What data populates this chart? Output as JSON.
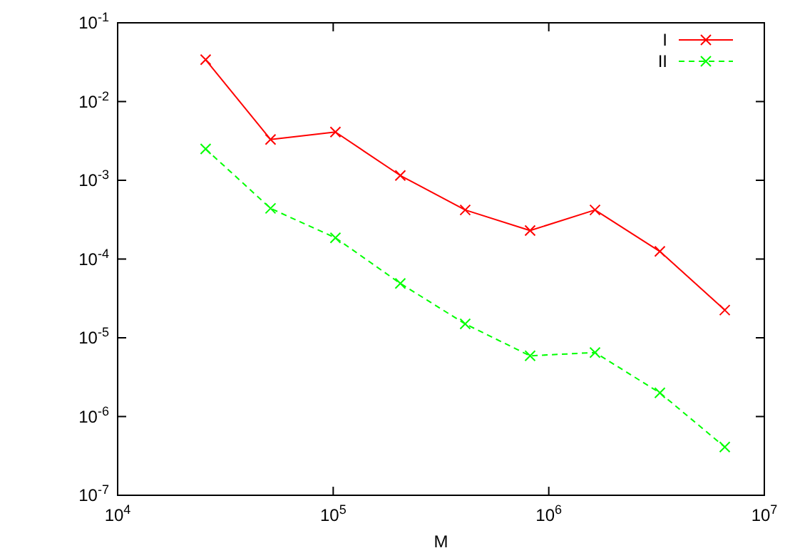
{
  "chart_data": {
    "type": "line",
    "xlabel": "M",
    "log": "xy",
    "grid": false,
    "legend": "top right",
    "x": [
      25600,
      51200,
      102400,
      204800,
      409600,
      819200,
      1638400,
      3276800,
      6553600
    ],
    "xlim": [
      10000,
      10000000
    ],
    "xticks": [
      {
        "value": 10000,
        "label": "10$^{4}$"
      },
      {
        "value": 100000,
        "label": "10$^{5}$"
      },
      {
        "value": 1000000,
        "label": "10$^{6}$"
      },
      {
        "value": 10000000,
        "label": "10$^{7}$"
      }
    ],
    "ylim": [
      1e-07,
      0.1
    ],
    "yticks": [
      {
        "value": 1e-07,
        "label": "10$^{-7}$"
      },
      {
        "value": 1e-06,
        "label": "10$^{-6}$"
      },
      {
        "value": 1e-05,
        "label": "10$^{-5}$"
      },
      {
        "value": 0.0001,
        "label": "10$^{-4}$"
      },
      {
        "value": 0.001,
        "label": "10$^{-3}$"
      },
      {
        "value": 0.01,
        "label": "10$^{-2}$"
      },
      {
        "value": 0.1,
        "label": "10$^{-1}$"
      }
    ],
    "series": [
      {
        "name": "I",
        "color": "#ff0000",
        "line_style": "solid",
        "marker": "cross",
        "values": [
          0.034,
          0.0033,
          0.0041,
          0.00115,
          0.00042,
          0.00023,
          0.00042,
          0.000125,
          2.25e-05
        ]
      },
      {
        "name": "II",
        "color": "#00ff00",
        "line_style": "dashed",
        "marker": "cross",
        "values": [
          0.0025,
          0.00044,
          0.000186,
          4.9e-05,
          1.5e-05,
          5.9e-06,
          6.5e-06,
          2e-06,
          4.1e-07
        ]
      }
    ]
  }
}
